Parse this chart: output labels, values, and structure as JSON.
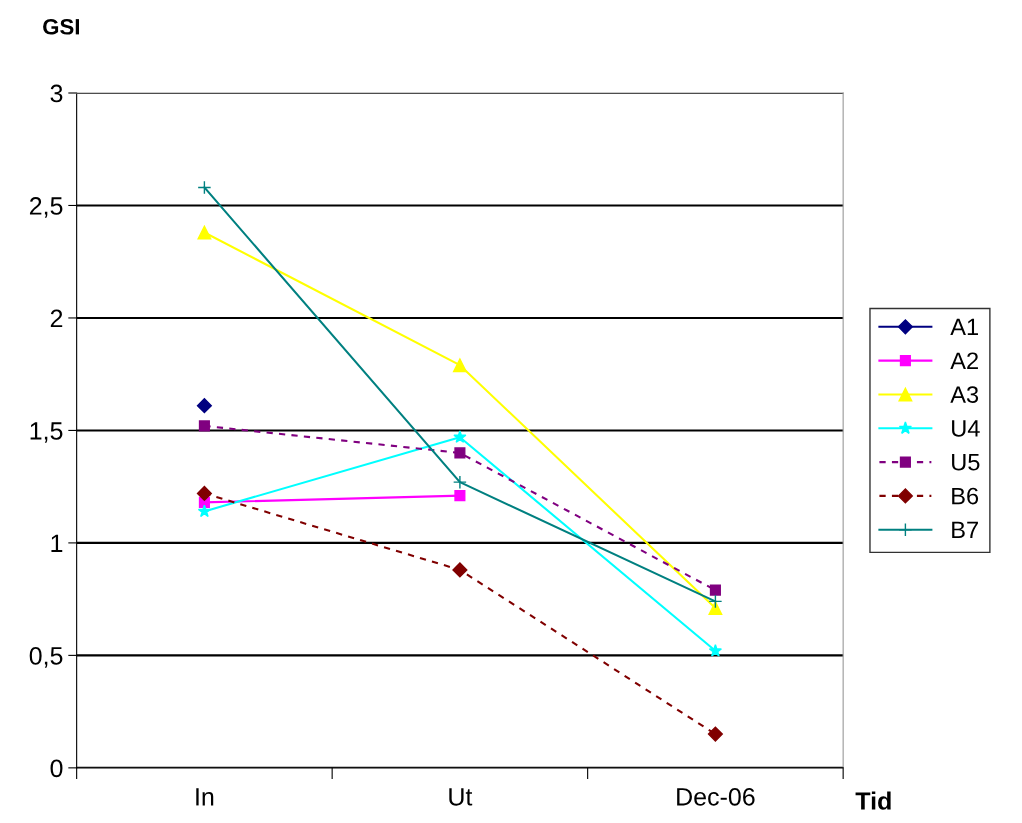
{
  "chart_data": {
    "type": "line",
    "ylabel": "GSI",
    "xlabel": "Tid",
    "categories": [
      "In",
      "Ut",
      "Dec-06"
    ],
    "series": [
      {
        "name": "A1",
        "color": "#000080",
        "marker": "diamond",
        "line_style": "solid",
        "values": [
          1.61,
          null,
          null
        ]
      },
      {
        "name": "A2",
        "color": "#ff00ff",
        "marker": "square",
        "line_style": "solid",
        "values": [
          1.18,
          1.21,
          null
        ]
      },
      {
        "name": "A3",
        "color": "#ffff00",
        "marker": "triangle",
        "line_style": "solid",
        "values": [
          2.38,
          1.79,
          0.71
        ]
      },
      {
        "name": "U4",
        "color": "#00ffff",
        "marker": "star",
        "line_style": "solid",
        "values": [
          1.14,
          1.47,
          0.52
        ]
      },
      {
        "name": "U5",
        "color": "#800080",
        "marker": "square",
        "line_style": "dashed",
        "values": [
          1.52,
          1.4,
          0.79
        ]
      },
      {
        "name": "B6",
        "color": "#800000",
        "marker": "diamond",
        "line_style": "dashed",
        "values": [
          1.22,
          0.88,
          0.15
        ]
      },
      {
        "name": "B7",
        "color": "#008080",
        "marker": "cross",
        "line_style": "solid",
        "values": [
          2.58,
          1.27,
          0.74
        ]
      }
    ],
    "ylim": [
      0,
      3
    ],
    "yticks": [
      0,
      {
        "value": 0.5,
        "label": "0,5"
      },
      1,
      {
        "value": 1.5,
        "label": "1,5"
      },
      2,
      {
        "value": 2.5,
        "label": "2,5"
      },
      3
    ],
    "grid": "y",
    "legend": "right"
  }
}
